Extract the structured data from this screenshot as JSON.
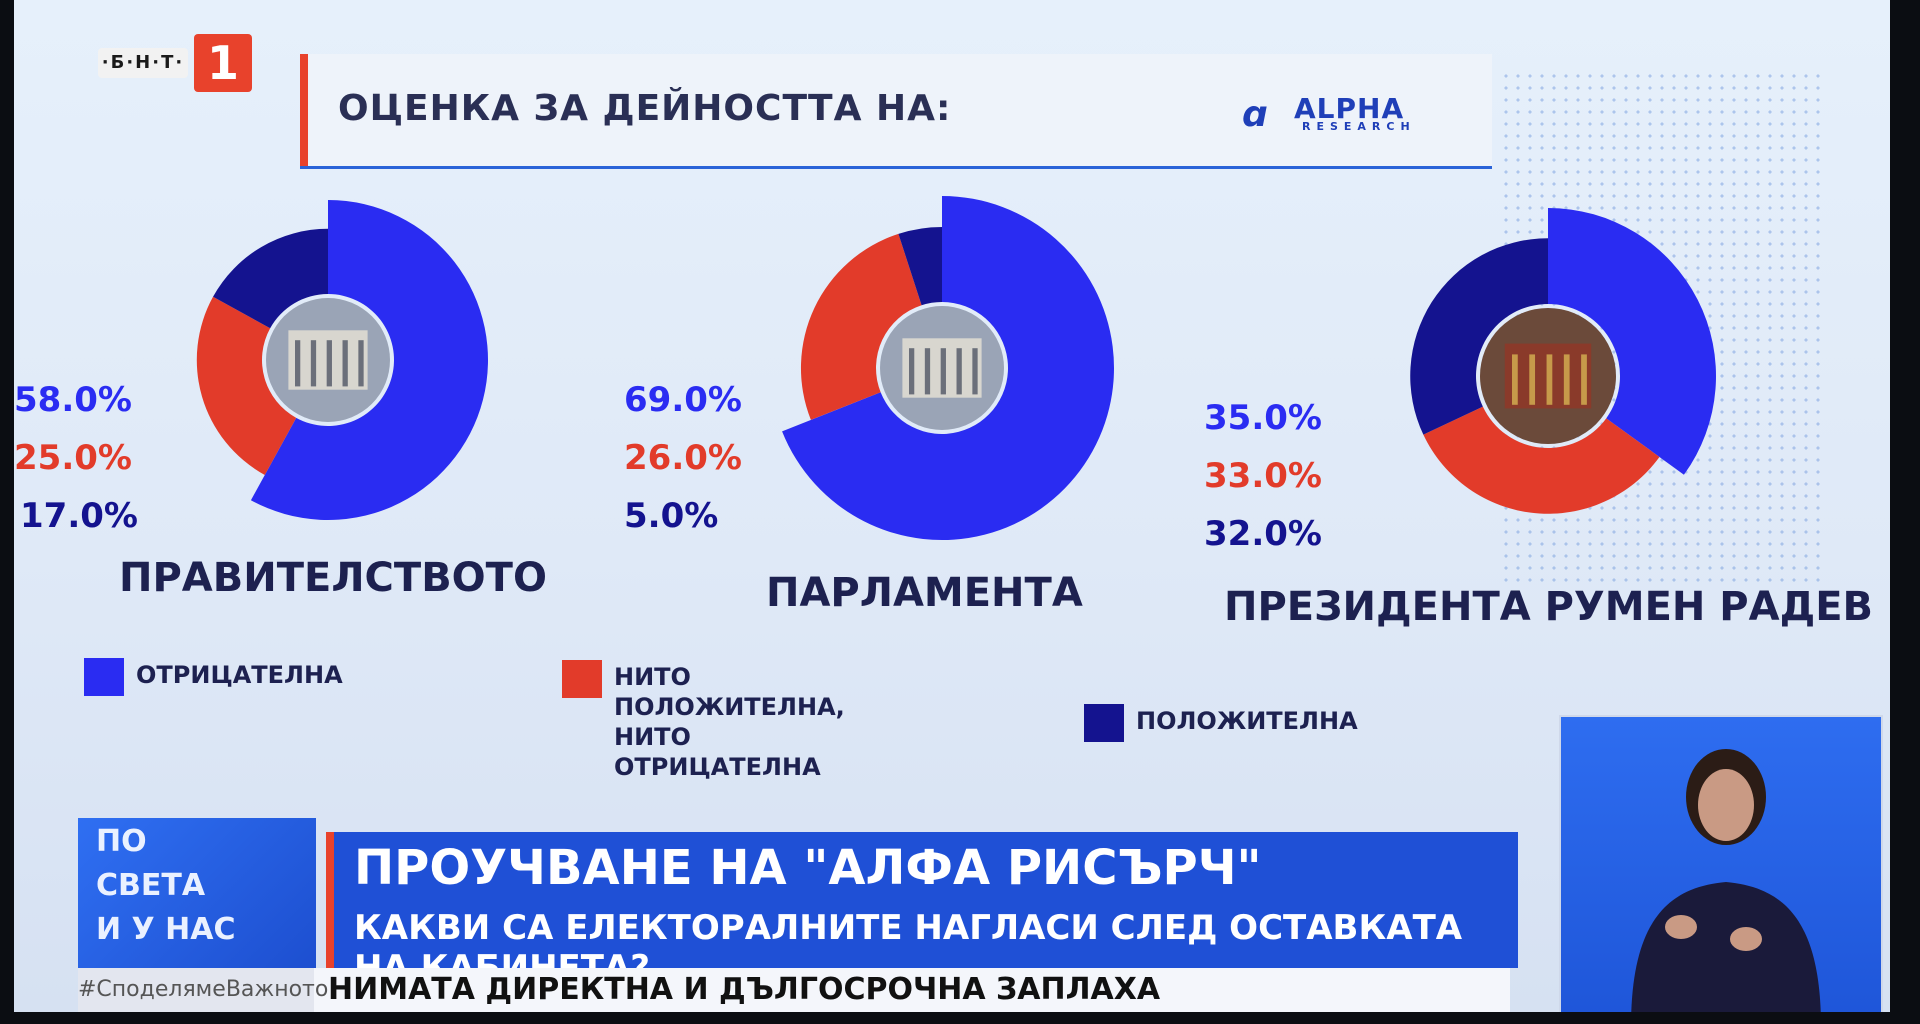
{
  "channel": {
    "logo_text": "·Б·Н·Т·",
    "logo_number": "1"
  },
  "header": {
    "title": "ОЦЕНКА ЗА ДЕЙНОСТТА НА:"
  },
  "source_logo": {
    "name": "ALPHA",
    "sub": "RESEARCH"
  },
  "colors": {
    "negative": "#2a2cf2",
    "neutral": "#e23b2a",
    "positive": "#14138f",
    "text_dark": "#1d2150",
    "accent_red": "#e8422c"
  },
  "chart_data": [
    {
      "type": "pie",
      "title": "ПРАВИТЕЛСТВОТО",
      "categories": [
        "ОТРИЦАТЕЛНА",
        "НИТО ПОЛОЖИТЕЛНА, НИТО ОТРИЦАТЕЛНА",
        "ПОЛОЖИТЕЛНА"
      ],
      "values": [
        58.0,
        25.0,
        17.0
      ],
      "labels": [
        "58.0%",
        "25.0%",
        "17.0%"
      ]
    },
    {
      "type": "pie",
      "title": "ПАРЛАМЕНТА",
      "categories": [
        "ОТРИЦАТЕЛНА",
        "НИТО ПОЛОЖИТЕЛНА, НИТО ОТРИЦАТЕЛНА",
        "ПОЛОЖИТЕЛНА"
      ],
      "values": [
        69.0,
        26.0,
        5.0
      ],
      "labels": [
        "69.0%",
        "26.0%",
        "5.0%"
      ]
    },
    {
      "type": "pie",
      "title": "ПРЕЗИДЕНТА РУМЕН РАДЕВ",
      "categories": [
        "ОТРИЦАТЕЛНА",
        "НИТО ПОЛОЖИТЕЛНА, НИТО ОТРИЦАТЕЛНА",
        "ПОЛОЖИТЕЛНА"
      ],
      "values": [
        35.0,
        33.0,
        32.0
      ],
      "labels": [
        "35.0%",
        "33.0%",
        "32.0%"
      ]
    }
  ],
  "legend": [
    {
      "label": "ОТРИЦАТЕЛНА",
      "color": "#2a2cf2"
    },
    {
      "label": "НИТО ПОЛОЖИТЕЛНА,\nНИТО ОТРИЦАТЕЛНА",
      "color": "#e23b2a"
    },
    {
      "label": "ПОЛОЖИТЕЛНА",
      "color": "#14138f"
    }
  ],
  "ticker": {
    "show_lines": [
      "ПО",
      "СВЕТА",
      "И У НАС"
    ],
    "headline": "ПРОУЧВАНЕ НА \"АЛФА РИСЪРЧ\"",
    "subline": "КАКВИ СА ЕЛЕКТОРАЛНИТЕ НАГЛАСИ СЛЕД ОСТАВКАТА НА КАБИНЕТА?",
    "hashtag": "#СподелямеВажното",
    "crawl": "НИМАТА ДИРЕКТНА И ДЪЛГОСРОЧНА ЗАПЛАХА"
  }
}
